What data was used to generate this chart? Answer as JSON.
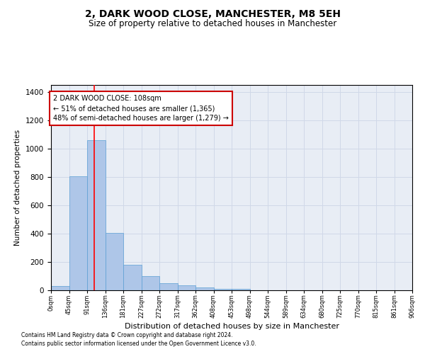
{
  "title": "2, DARK WOOD CLOSE, MANCHESTER, M8 5EH",
  "subtitle": "Size of property relative to detached houses in Manchester",
  "xlabel": "Distribution of detached houses by size in Manchester",
  "ylabel": "Number of detached properties",
  "footnote1": "Contains HM Land Registry data © Crown copyright and database right 2024.",
  "footnote2": "Contains public sector information licensed under the Open Government Licence v3.0.",
  "bar_values": [
    28,
    805,
    1060,
    405,
    182,
    100,
    52,
    35,
    20,
    10,
    10,
    0,
    0,
    0,
    0,
    0,
    0,
    0,
    0,
    0
  ],
  "bin_labels": [
    "0sqm",
    "45sqm",
    "91sqm",
    "136sqm",
    "181sqm",
    "227sqm",
    "272sqm",
    "317sqm",
    "362sqm",
    "408sqm",
    "453sqm",
    "498sqm",
    "544sqm",
    "589sqm",
    "634sqm",
    "680sqm",
    "725sqm",
    "770sqm",
    "815sqm",
    "861sqm",
    "906sqm"
  ],
  "bar_color": "#aec6e8",
  "bar_edge_color": "#5a9fd4",
  "redline_x": 108,
  "annotation_line1": "2 DARK WOOD CLOSE: 108sqm",
  "annotation_line2": "← 51% of detached houses are smaller (1,365)",
  "annotation_line3": "48% of semi-detached houses are larger (1,279) →",
  "annotation_box_color": "#ffffff",
  "annotation_box_edge": "#cc0000",
  "ylim": [
    0,
    1450
  ],
  "yticks": [
    0,
    200,
    400,
    600,
    800,
    1000,
    1200,
    1400
  ],
  "grid_color": "#d0d8e8",
  "background_color": "#e8edf5",
  "title_fontsize": 10,
  "subtitle_fontsize": 8.5,
  "bin_width": 45,
  "n_bins": 20
}
